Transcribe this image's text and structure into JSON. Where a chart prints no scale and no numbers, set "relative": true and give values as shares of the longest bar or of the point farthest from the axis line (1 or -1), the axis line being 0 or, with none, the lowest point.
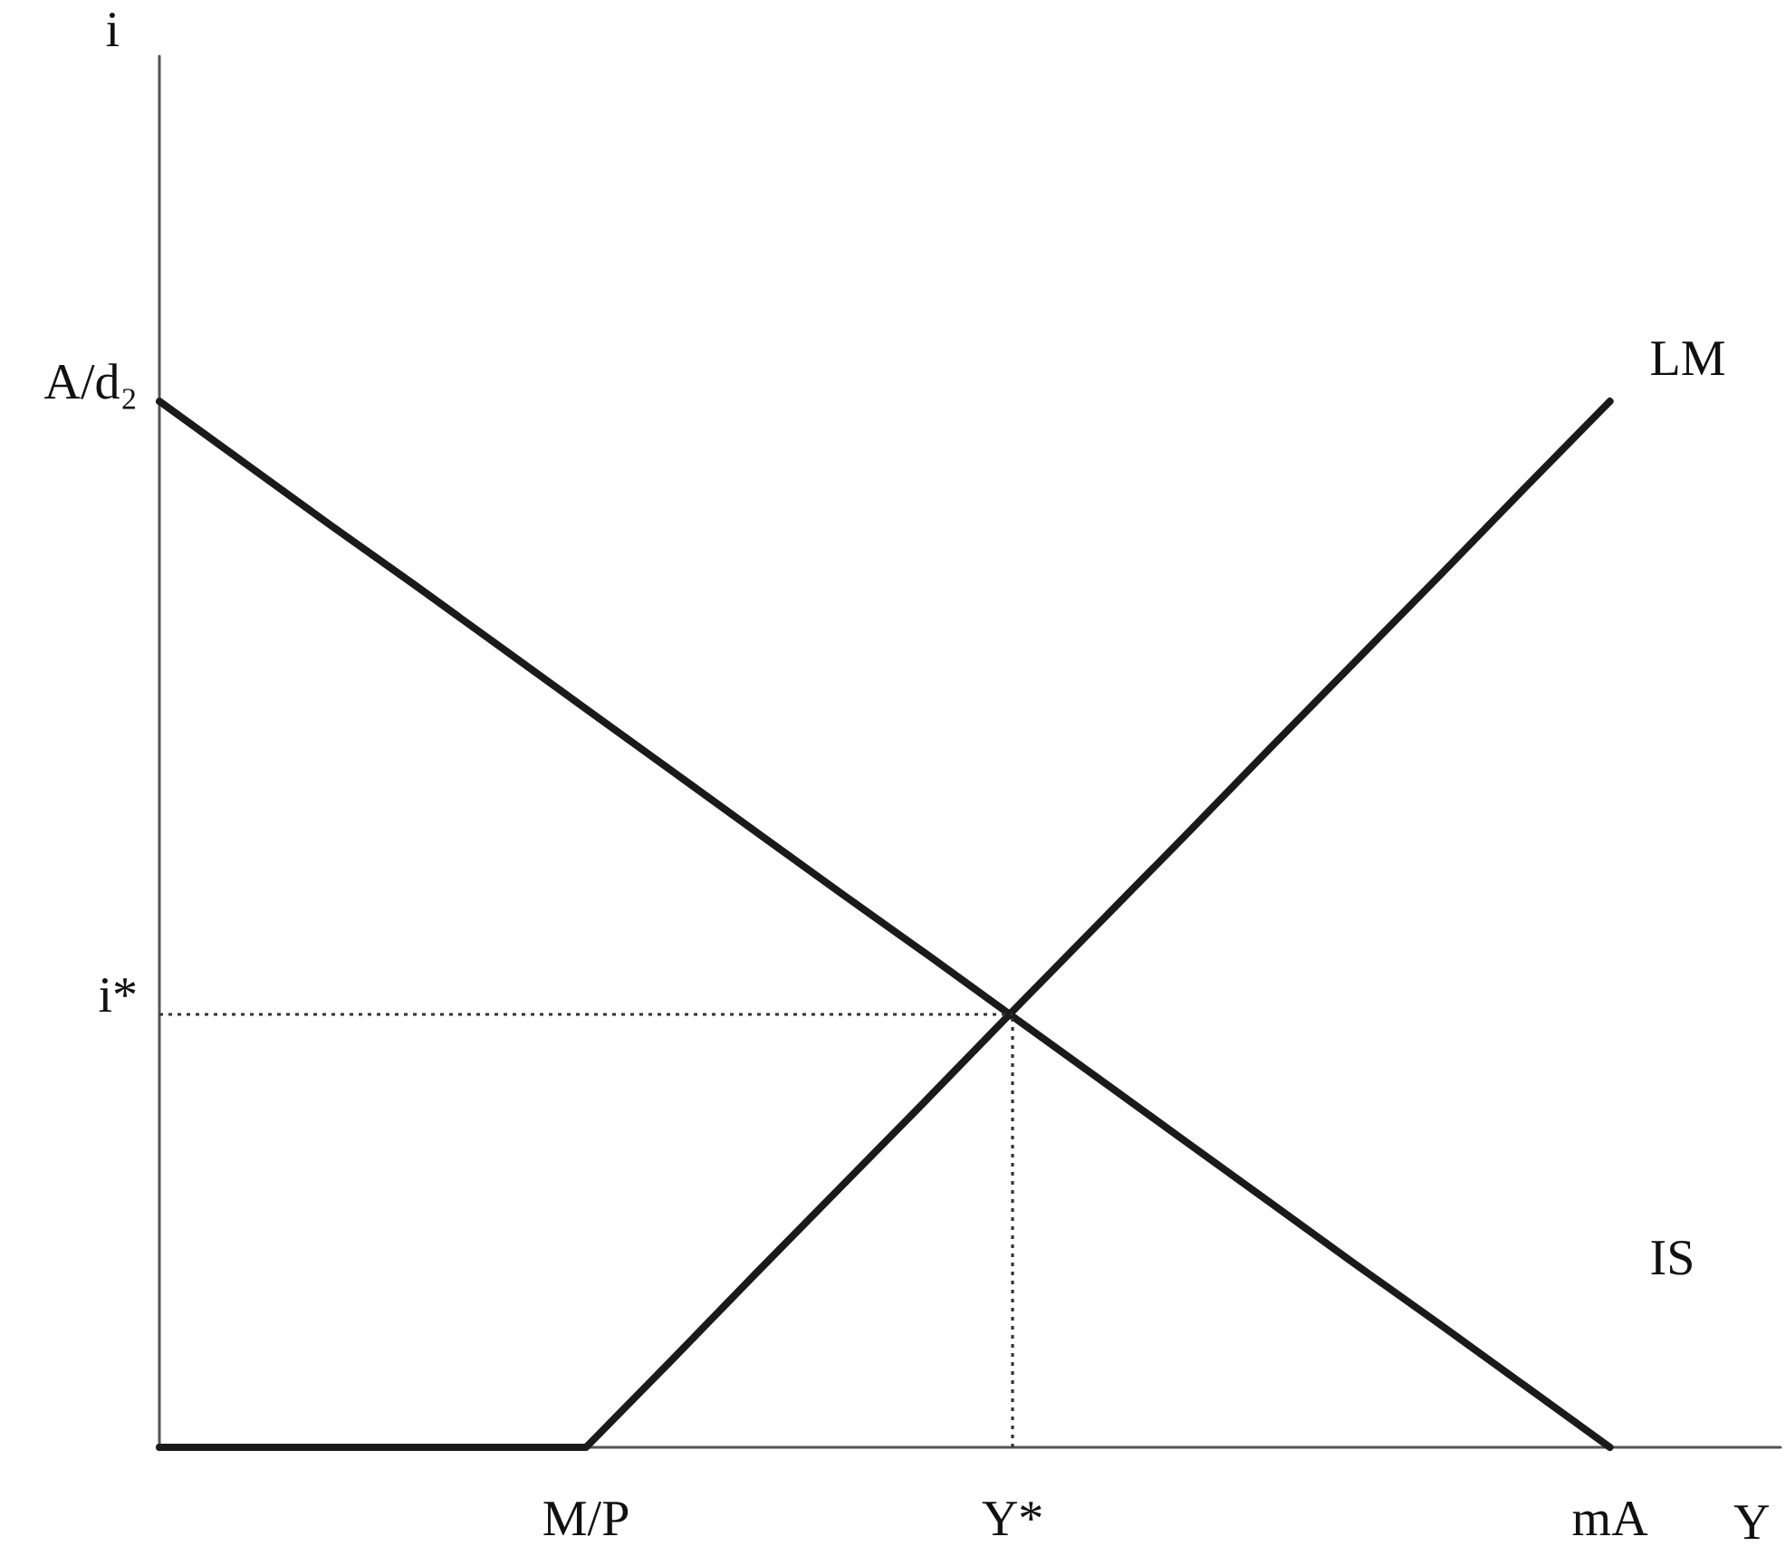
{
  "chart_data": {
    "type": "line",
    "relative": true,
    "xlabel": "Y",
    "grid": false,
    "tick_labels": "x",
    "categories": [
      null,
      null,
      null,
      null,
      null,
      "M/P",
      null,
      null,
      null,
      null,
      "Y*",
      null,
      null,
      null,
      null,
      null,
      null,
      "mA",
      null,
      null
    ],
    "series": [
      {
        "name": "IS",
        "color": "#1a1a1a",
        "values": [
          1,
          0.941,
          0.882,
          0.824,
          0.765,
          0.706,
          0.647,
          0.588,
          0.529,
          0.471,
          0.412,
          0.353,
          0.294,
          0.235,
          0.176,
          0.118,
          0.059,
          0,
          null,
          null
        ]
      },
      {
        "name": "LM",
        "color": "#1a1a1a",
        "values": [
          0,
          0,
          0,
          0,
          0,
          0,
          0.083,
          0.167,
          0.25,
          0.333,
          0.417,
          0.5,
          0.583,
          0.667,
          0.75,
          0.833,
          0.917,
          1,
          null,
          null
        ]
      }
    ],
    "ref_lines": [
      {
        "axis": "y",
        "value": 0.414,
        "label": "i*",
        "color": "#333333",
        "line_style": "dotted"
      },
      {
        "axis": "x",
        "value": "Y*",
        "color": "#333333",
        "line_style": "dotted"
      }
    ],
    "annotations": [
      "i",
      "A/d₂"
    ]
  }
}
